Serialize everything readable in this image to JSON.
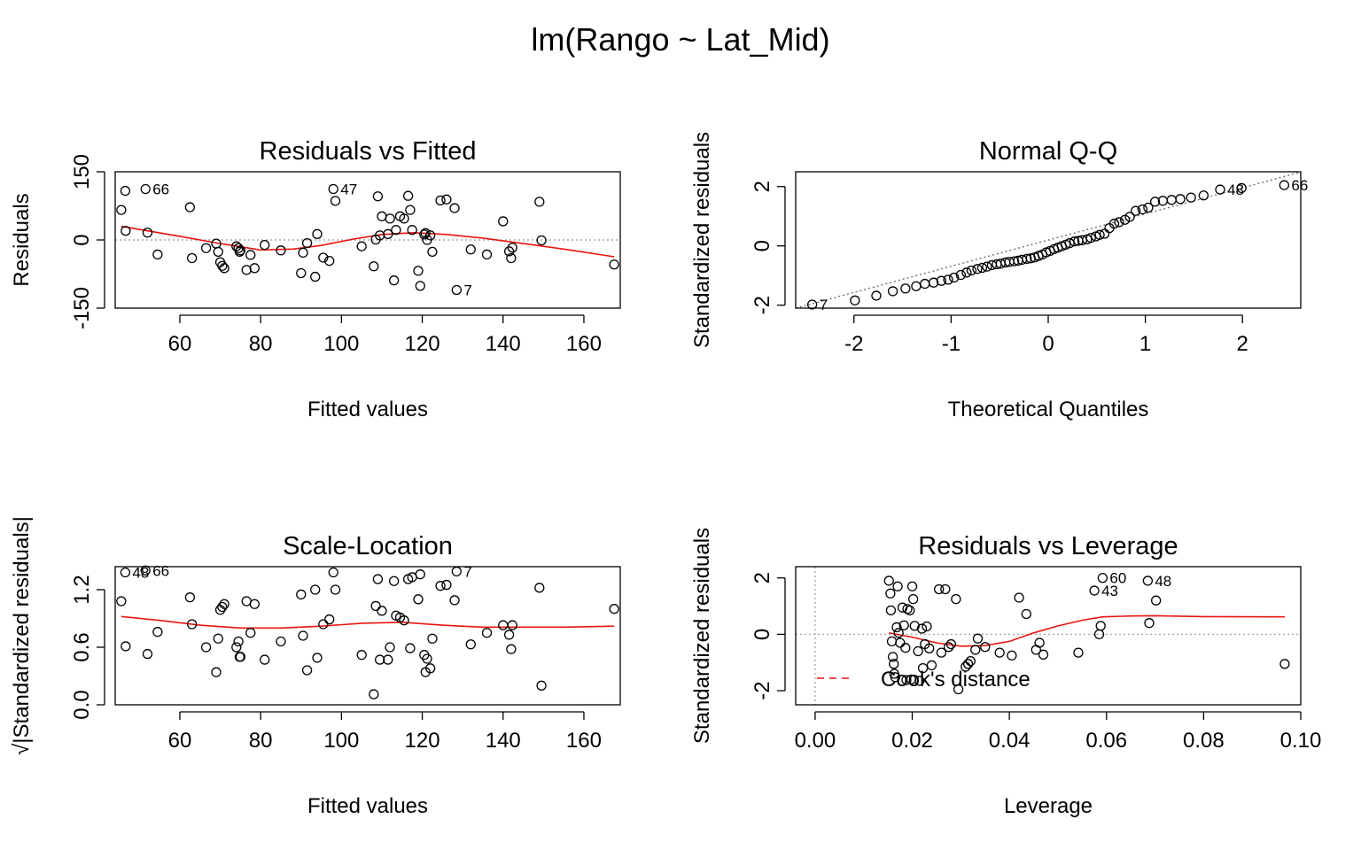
{
  "main_title": "lm(Rango ~ Lat_Mid)",
  "chart_data": [
    {
      "type": "scatter",
      "title": "Residuals vs Fitted",
      "xlabel": "Fitted values",
      "ylabel": "Residuals",
      "xlim": [
        44,
        169
      ],
      "ylim": [
        -150,
        150
      ],
      "xticks": [
        60,
        80,
        100,
        120,
        140,
        160
      ],
      "yticks": [
        -150,
        0,
        150
      ],
      "reference_line": {
        "y": 0,
        "style": "dotted"
      },
      "points": [
        [
          45.5,
          66
        ],
        [
          46.5,
          108
        ],
        [
          46.6,
          20
        ],
        [
          51.5,
          112
        ],
        [
          52,
          16
        ],
        [
          54.5,
          -32
        ],
        [
          62.5,
          72
        ],
        [
          63,
          -40
        ],
        [
          66.5,
          -18
        ],
        [
          69,
          -8
        ],
        [
          69.5,
          -26
        ],
        [
          70,
          -49
        ],
        [
          70.5,
          -57
        ],
        [
          71,
          -62
        ],
        [
          74,
          -14
        ],
        [
          74.5,
          -18
        ],
        [
          74.8,
          -26
        ],
        [
          75,
          -23
        ],
        [
          76.5,
          -66
        ],
        [
          77.5,
          -33
        ],
        [
          78.5,
          -62
        ],
        [
          81,
          -11
        ],
        [
          85,
          -23
        ],
        [
          90,
          -73
        ],
        [
          90.5,
          -28
        ],
        [
          91.5,
          -7
        ],
        [
          93.5,
          -81
        ],
        [
          94,
          13
        ],
        [
          95.5,
          -39
        ],
        [
          97,
          -46
        ],
        [
          98,
          112
        ],
        [
          98.5,
          86
        ],
        [
          105,
          -14
        ],
        [
          108,
          -58
        ],
        [
          108.5,
          1
        ],
        [
          109,
          96
        ],
        [
          109.5,
          10
        ],
        [
          110,
          52
        ],
        [
          111.5,
          13
        ],
        [
          112,
          47
        ],
        [
          113,
          -89
        ],
        [
          113.5,
          22
        ],
        [
          114.5,
          52
        ],
        [
          115.5,
          47
        ],
        [
          116.5,
          97
        ],
        [
          117,
          66
        ],
        [
          117.5,
          22
        ],
        [
          119,
          -68
        ],
        [
          119.5,
          -101
        ],
        [
          120.5,
          12
        ],
        [
          120.8,
          15
        ],
        [
          121.2,
          0
        ],
        [
          122,
          10
        ],
        [
          122.5,
          -26
        ],
        [
          124.5,
          87
        ],
        [
          126,
          89
        ],
        [
          128,
          70
        ],
        [
          128.5,
          -110
        ],
        [
          132,
          -21
        ],
        [
          136,
          -32
        ],
        [
          140,
          41
        ],
        [
          141.5,
          -25
        ],
        [
          142,
          -40
        ],
        [
          142.3,
          -17
        ],
        [
          149,
          84
        ],
        [
          149.5,
          -1
        ],
        [
          167.5,
          -54
        ]
      ],
      "point_labels": [
        {
          "text": "66",
          "x": 51.5,
          "y": 112
        },
        {
          "text": "47",
          "x": 98,
          "y": 112
        },
        {
          "text": "7",
          "x": 128.5,
          "y": -110
        }
      ],
      "smoother": [
        [
          45.5,
          30
        ],
        [
          60,
          8
        ],
        [
          70,
          -8
        ],
        [
          80,
          -22
        ],
        [
          88,
          -20
        ],
        [
          95,
          -12
        ],
        [
          103,
          2
        ],
        [
          110,
          12
        ],
        [
          118,
          16
        ],
        [
          126,
          12
        ],
        [
          135,
          4
        ],
        [
          145,
          -8
        ],
        [
          155,
          -20
        ],
        [
          167.5,
          -37
        ]
      ]
    },
    {
      "type": "scatter",
      "title": "Normal Q-Q",
      "xlabel": "Theoretical Quantiles",
      "ylabel": "Standardized residuals",
      "xlim": [
        -2.6,
        2.6
      ],
      "ylim": [
        -2.1,
        2.5
      ],
      "xticks": [
        -2,
        -1,
        0,
        1,
        2
      ],
      "yticks": [
        -2,
        0,
        2
      ],
      "reference_line": {
        "slope": 0.95,
        "intercept": 0.02,
        "style": "dotted"
      },
      "points": [
        [
          -2.43,
          -1.98
        ],
        [
          -1.99,
          -1.84
        ],
        [
          -1.77,
          -1.68
        ],
        [
          -1.6,
          -1.53
        ],
        [
          -1.47,
          -1.44
        ],
        [
          -1.36,
          -1.36
        ],
        [
          -1.27,
          -1.28
        ],
        [
          -1.18,
          -1.24
        ],
        [
          -1.1,
          -1.18
        ],
        [
          -1.03,
          -1.14
        ],
        [
          -0.97,
          -1.07
        ],
        [
          -0.9,
          -0.98
        ],
        [
          -0.84,
          -0.9
        ],
        [
          -0.79,
          -0.83
        ],
        [
          -0.73,
          -0.78
        ],
        [
          -0.68,
          -0.74
        ],
        [
          -0.63,
          -0.7
        ],
        [
          -0.58,
          -0.65
        ],
        [
          -0.53,
          -0.62
        ],
        [
          -0.49,
          -0.6
        ],
        [
          -0.44,
          -0.56
        ],
        [
          -0.4,
          -0.54
        ],
        [
          -0.35,
          -0.52
        ],
        [
          -0.31,
          -0.5
        ],
        [
          -0.27,
          -0.47
        ],
        [
          -0.22,
          -0.44
        ],
        [
          -0.18,
          -0.42
        ],
        [
          -0.14,
          -0.39
        ],
        [
          -0.1,
          -0.34
        ],
        [
          -0.06,
          -0.29
        ],
        [
          -0.02,
          -0.22
        ],
        [
          0.02,
          -0.17
        ],
        [
          0.06,
          -0.11
        ],
        [
          0.1,
          -0.06
        ],
        [
          0.14,
          -0.01
        ],
        [
          0.18,
          0.04
        ],
        [
          0.22,
          0.09
        ],
        [
          0.27,
          0.15
        ],
        [
          0.31,
          0.17
        ],
        [
          0.35,
          0.19
        ],
        [
          0.4,
          0.22
        ],
        [
          0.44,
          0.27
        ],
        [
          0.49,
          0.32
        ],
        [
          0.53,
          0.37
        ],
        [
          0.58,
          0.41
        ],
        [
          0.63,
          0.6
        ],
        [
          0.68,
          0.75
        ],
        [
          0.73,
          0.8
        ],
        [
          0.79,
          0.88
        ],
        [
          0.84,
          0.98
        ],
        [
          0.9,
          1.18
        ],
        [
          0.97,
          1.23
        ],
        [
          1.03,
          1.29
        ],
        [
          1.1,
          1.49
        ],
        [
          1.18,
          1.52
        ],
        [
          1.27,
          1.55
        ],
        [
          1.36,
          1.58
        ],
        [
          1.47,
          1.63
        ],
        [
          1.6,
          1.7
        ],
        [
          1.77,
          1.9
        ],
        [
          1.99,
          1.95
        ],
        [
          2.43,
          2.05
        ]
      ],
      "point_labels": [
        {
          "text": "7",
          "x": -2.43,
          "y": -1.98
        },
        {
          "text": "48",
          "x": 1.77,
          "y": 1.9
        },
        {
          "text": "66",
          "x": 2.43,
          "y": 2.05
        }
      ]
    },
    {
      "type": "scatter",
      "title": "Scale-Location",
      "xlabel": "Fitted values",
      "ylabel": "√|Standardized residuals|",
      "xlim": [
        44,
        169
      ],
      "ylim": [
        0,
        1.44
      ],
      "xticks": [
        60,
        80,
        100,
        120,
        140,
        160
      ],
      "yticks": [
        0.0,
        0.6,
        1.2
      ],
      "ytick_labels": [
        "0.0",
        "0.6",
        "1.2"
      ],
      "points": [
        [
          45.5,
          1.08
        ],
        [
          46.5,
          1.38
        ],
        [
          46.6,
          0.61
        ],
        [
          51.5,
          1.4
        ],
        [
          52,
          0.53
        ],
        [
          54.5,
          0.76
        ],
        [
          62.5,
          1.12
        ],
        [
          63,
          0.84
        ],
        [
          66.5,
          0.6
        ],
        [
          69,
          0.34
        ],
        [
          69.5,
          0.69
        ],
        [
          70,
          0.99
        ],
        [
          70.5,
          1.02
        ],
        [
          71,
          1.05
        ],
        [
          74,
          0.6
        ],
        [
          74.5,
          0.66
        ],
        [
          74.8,
          0.5
        ],
        [
          75,
          0.5
        ],
        [
          76.5,
          1.08
        ],
        [
          77.5,
          0.75
        ],
        [
          78.5,
          1.05
        ],
        [
          81,
          0.47
        ],
        [
          85,
          0.66
        ],
        [
          90,
          1.15
        ],
        [
          90.5,
          0.72
        ],
        [
          91.5,
          0.36
        ],
        [
          93.5,
          1.2
        ],
        [
          94,
          0.49
        ],
        [
          95.5,
          0.84
        ],
        [
          97,
          0.89
        ],
        [
          98,
          1.38
        ],
        [
          98.5,
          1.2
        ],
        [
          105,
          0.52
        ],
        [
          108,
          0.11
        ],
        [
          108.5,
          1.03
        ],
        [
          109,
          1.31
        ],
        [
          109.5,
          0.47
        ],
        [
          110,
          0.98
        ],
        [
          111.5,
          0.47
        ],
        [
          112,
          0.6
        ],
        [
          113,
          1.29
        ],
        [
          113.5,
          0.93
        ],
        [
          114.5,
          0.91
        ],
        [
          115.5,
          0.88
        ],
        [
          116.5,
          1.31
        ],
        [
          117,
          0.59
        ],
        [
          117.5,
          1.33
        ],
        [
          119,
          1.1
        ],
        [
          119.5,
          1.36
        ],
        [
          120.5,
          0.52
        ],
        [
          120.8,
          0.34
        ],
        [
          121.2,
          0.48
        ],
        [
          122,
          0.38
        ],
        [
          122.5,
          0.69
        ],
        [
          124.5,
          1.24
        ],
        [
          126,
          1.25
        ],
        [
          128,
          1.09
        ],
        [
          128.5,
          1.39
        ],
        [
          132,
          0.63
        ],
        [
          136,
          0.75
        ],
        [
          140,
          0.83
        ],
        [
          141.5,
          0.73
        ],
        [
          142,
          0.58
        ],
        [
          142.3,
          0.83
        ],
        [
          149,
          1.22
        ],
        [
          149.5,
          0.2
        ],
        [
          167.5,
          1.0
        ]
      ],
      "point_labels": [
        {
          "text": "48",
          "x": 46.5,
          "y": 1.38
        },
        {
          "text": "66",
          "x": 51.5,
          "y": 1.4
        },
        {
          "text": "7",
          "x": 128.5,
          "y": 1.39
        }
      ],
      "smoother": [
        [
          45.5,
          0.92
        ],
        [
          55,
          0.88
        ],
        [
          65,
          0.83
        ],
        [
          75,
          0.8
        ],
        [
          85,
          0.8
        ],
        [
          95,
          0.82
        ],
        [
          105,
          0.85
        ],
        [
          115,
          0.86
        ],
        [
          125,
          0.83
        ],
        [
          135,
          0.81
        ],
        [
          145,
          0.81
        ],
        [
          155,
          0.81
        ],
        [
          167.5,
          0.82
        ]
      ]
    },
    {
      "type": "scatter",
      "title": "Residuals vs Leverage",
      "xlabel": "Leverage",
      "ylabel": "Standardized residuals",
      "xlim": [
        -0.004,
        0.1
      ],
      "ylim": [
        -2.5,
        2.4
      ],
      "xticks": [
        0.0,
        0.02,
        0.04,
        0.06,
        0.08,
        0.1
      ],
      "xtick_labels": [
        "0.00",
        "0.02",
        "0.04",
        "0.06",
        "0.08",
        "0.10"
      ],
      "yticks": [
        -2,
        0,
        2
      ],
      "reference_line": {
        "y": 0,
        "x": 0,
        "style": "dotted"
      },
      "legend": {
        "entries": [
          "Cook's distance"
        ],
        "style": "dashed red",
        "placement": "bottom-left"
      },
      "points": [
        [
          0.0152,
          1.9
        ],
        [
          0.0155,
          1.45
        ],
        [
          0.0156,
          0.85
        ],
        [
          0.0158,
          -0.25
        ],
        [
          0.016,
          -0.8
        ],
        [
          0.0162,
          -1.05
        ],
        [
          0.0163,
          -1.4
        ],
        [
          0.0165,
          -1.52
        ],
        [
          0.0168,
          0.25
        ],
        [
          0.017,
          1.7
        ],
        [
          0.0172,
          0.05
        ],
        [
          0.0175,
          -0.3
        ],
        [
          0.018,
          0.95
        ],
        [
          0.0183,
          0.32
        ],
        [
          0.0186,
          -0.48
        ],
        [
          0.0188,
          -1.62
        ],
        [
          0.019,
          0.9
        ],
        [
          0.0195,
          0.85
        ],
        [
          0.0198,
          -1.6
        ],
        [
          0.02,
          1.7
        ],
        [
          0.0202,
          1.25
        ],
        [
          0.0205,
          0.3
        ],
        [
          0.0212,
          -0.6
        ],
        [
          0.0215,
          -1.65
        ],
        [
          0.022,
          0.2
        ],
        [
          0.0222,
          -1.2
        ],
        [
          0.0226,
          -0.35
        ],
        [
          0.023,
          0.28
        ],
        [
          0.0235,
          -0.5
        ],
        [
          0.024,
          -1.1
        ],
        [
          0.0255,
          1.6
        ],
        [
          0.026,
          -0.65
        ],
        [
          0.0268,
          1.6
        ],
        [
          0.0275,
          -0.45
        ],
        [
          0.028,
          -0.35
        ],
        [
          0.029,
          1.25
        ],
        [
          0.0295,
          -1.95
        ],
        [
          0.031,
          -1.15
        ],
        [
          0.0315,
          -1.05
        ],
        [
          0.032,
          -0.95
        ],
        [
          0.033,
          -0.55
        ],
        [
          0.0335,
          -0.15
        ],
        [
          0.035,
          -0.45
        ],
        [
          0.038,
          -0.65
        ],
        [
          0.0405,
          -0.75
        ],
        [
          0.042,
          1.3
        ],
        [
          0.0435,
          0.72
        ],
        [
          0.0455,
          -0.55
        ],
        [
          0.0462,
          -0.3
        ],
        [
          0.047,
          -0.72
        ],
        [
          0.0542,
          -0.65
        ],
        [
          0.0575,
          1.55
        ],
        [
          0.0585,
          0.0
        ],
        [
          0.0588,
          0.3
        ],
        [
          0.0592,
          2.0
        ],
        [
          0.0685,
          1.9
        ],
        [
          0.0688,
          0.4
        ],
        [
          0.0702,
          1.2
        ],
        [
          0.0967,
          -1.05
        ]
      ],
      "point_labels": [
        {
          "text": "60",
          "x": 0.0592,
          "y": 2.0
        },
        {
          "text": "48",
          "x": 0.0685,
          "y": 1.9
        },
        {
          "text": "43",
          "x": 0.0575,
          "y": 1.55
        }
      ],
      "smoother": [
        [
          0.0152,
          0.05
        ],
        [
          0.02,
          -0.1
        ],
        [
          0.025,
          -0.3
        ],
        [
          0.03,
          -0.42
        ],
        [
          0.035,
          -0.4
        ],
        [
          0.04,
          -0.25
        ],
        [
          0.045,
          0.05
        ],
        [
          0.05,
          0.3
        ],
        [
          0.055,
          0.5
        ],
        [
          0.0592,
          0.62
        ],
        [
          0.065,
          0.65
        ],
        [
          0.07,
          0.66
        ],
        [
          0.08,
          0.63
        ],
        [
          0.0967,
          0.62
        ]
      ]
    }
  ]
}
